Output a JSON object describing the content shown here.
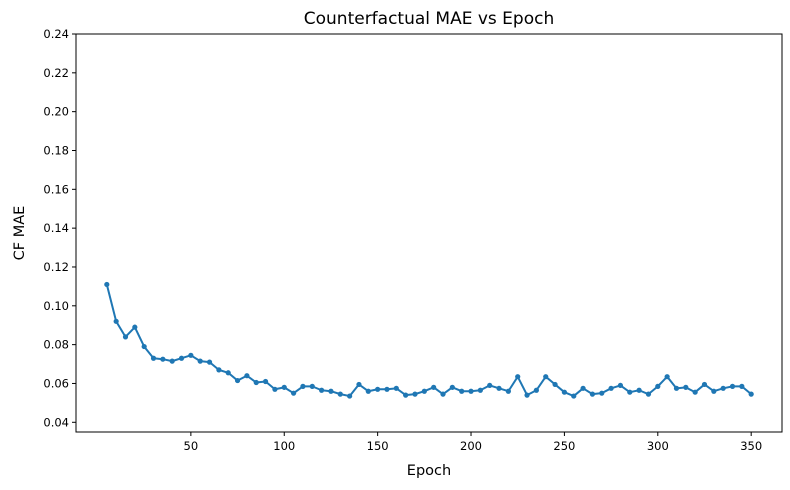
{
  "chart_data": {
    "type": "line",
    "title": "Counterfactual MAE vs Epoch",
    "xlabel": "Epoch",
    "ylabel": "CF MAE",
    "xlim": [
      -11.5,
      366.5
    ],
    "ylim": [
      0.035,
      0.24
    ],
    "xticks": [
      50,
      100,
      150,
      200,
      250,
      300,
      350
    ],
    "yticks": [
      0.04,
      0.06,
      0.08,
      0.1,
      0.12,
      0.14,
      0.16,
      0.18,
      0.2,
      0.22,
      0.24
    ],
    "ytick_labels": [
      "0.04",
      "0.06",
      "0.08",
      "0.10",
      "0.12",
      "0.14",
      "0.16",
      "0.18",
      "0.20",
      "0.22",
      "0.24"
    ],
    "grid": false,
    "line_color": "#1f77b4",
    "x": [
      5,
      10,
      15,
      20,
      25,
      30,
      35,
      40,
      45,
      50,
      55,
      60,
      65,
      70,
      75,
      80,
      85,
      90,
      95,
      100,
      105,
      110,
      115,
      120,
      125,
      130,
      135,
      140,
      145,
      150,
      155,
      160,
      165,
      170,
      175,
      180,
      185,
      190,
      195,
      200,
      205,
      210,
      215,
      220,
      225,
      230,
      235,
      240,
      245,
      250,
      255,
      260,
      265,
      270,
      275,
      280,
      285,
      290,
      295,
      300,
      305,
      310,
      315,
      320,
      325,
      330,
      335,
      340,
      345,
      350
    ],
    "values": [
      0.111,
      0.092,
      0.084,
      0.089,
      0.079,
      0.073,
      0.0725,
      0.0715,
      0.073,
      0.0745,
      0.0715,
      0.071,
      0.067,
      0.0655,
      0.0615,
      0.064,
      0.0605,
      0.061,
      0.057,
      0.058,
      0.055,
      0.0585,
      0.0585,
      0.0565,
      0.056,
      0.0545,
      0.0535,
      0.0595,
      0.056,
      0.057,
      0.057,
      0.0575,
      0.054,
      0.0545,
      0.056,
      0.058,
      0.0545,
      0.058,
      0.056,
      0.056,
      0.0565,
      0.059,
      0.0575,
      0.056,
      0.0635,
      0.054,
      0.0565,
      0.0635,
      0.0595,
      0.0555,
      0.0535,
      0.0575,
      0.0545,
      0.055,
      0.0575,
      0.059,
      0.0555,
      0.0565,
      0.0545,
      0.0585,
      0.0635,
      0.0575,
      0.058,
      0.0555,
      0.0595,
      0.056,
      0.0575,
      0.0585,
      0.0585,
      0.0545
    ]
  }
}
